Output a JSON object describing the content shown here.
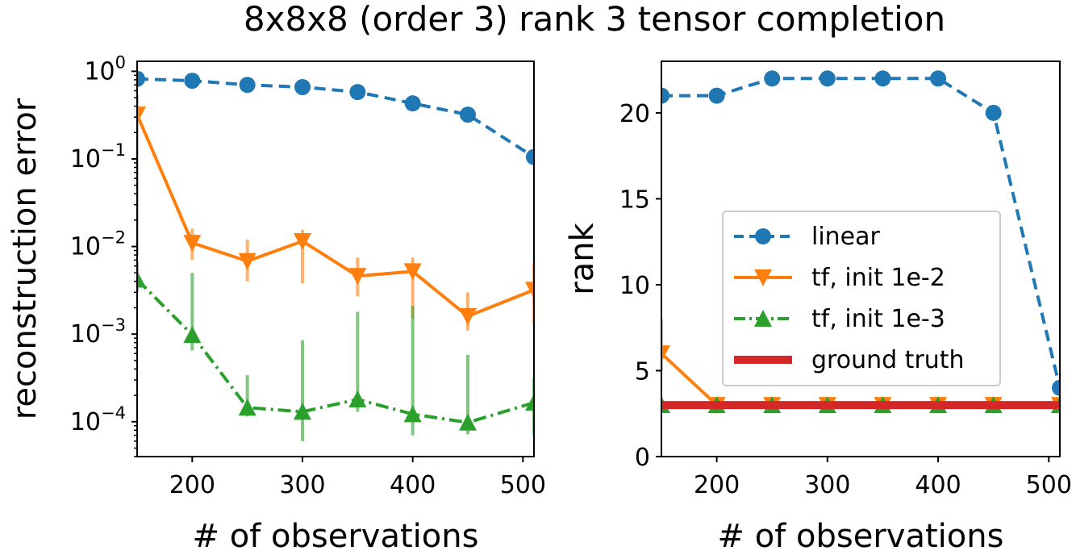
{
  "figure_title": "8x8x8 (order 3) rank 3 tensor completion",
  "colors": {
    "linear": "#1f77b4",
    "tf_1e2": "#ff7f0e",
    "tf_1e3": "#2ca02c",
    "ground_truth": "#d62728"
  },
  "chart_data": [
    {
      "type": "line",
      "yscale": "log",
      "title": "",
      "xlabel": "# of observations",
      "ylabel": "reconstruction error",
      "xlim": [
        150,
        510
      ],
      "ylim": [
        4e-05,
        1.3
      ],
      "xticks": [
        200,
        300,
        400,
        500
      ],
      "xtick_labels": [
        "200",
        "300",
        "400",
        "500"
      ],
      "yticks": [
        1,
        0.1,
        0.01,
        0.001,
        0.0001
      ],
      "ytick_labels": [
        [
          "10",
          "0"
        ],
        [
          "10",
          "−1"
        ],
        [
          "10",
          "−2"
        ],
        [
          "10",
          "−3"
        ],
        [
          "10",
          "−4"
        ]
      ],
      "grid": false,
      "x": [
        150,
        200,
        250,
        300,
        350,
        400,
        450,
        510
      ],
      "series": [
        {
          "name": "linear",
          "color_key": "linear",
          "marker": "circle",
          "dash": "dashed",
          "values": [
            0.82,
            0.78,
            0.7,
            0.66,
            0.58,
            0.43,
            0.32,
            0.105
          ]
        },
        {
          "name": "tf, init 1e-2",
          "color_key": "tf_1e2",
          "marker": "triangle-down",
          "dash": "solid",
          "values": [
            0.32,
            0.011,
            0.0068,
            0.0115,
            0.0046,
            0.0052,
            0.0016,
            0.0032
          ],
          "err_lo": [
            0.008,
            0.007,
            0.004,
            0.0038,
            0.0027,
            0.0015,
            0.0011,
            0.0013
          ],
          "err_hi": [
            0.55,
            0.016,
            0.012,
            0.0155,
            0.0075,
            0.0075,
            0.003,
            0.0065
          ]
        },
        {
          "name": "tf, init 1e-3",
          "color_key": "tf_1e3",
          "marker": "triangle-up",
          "dash": "dashdot",
          "values": [
            0.0042,
            0.00098,
            0.000145,
            0.00013,
            0.00018,
            0.000122,
            9.8e-05,
            0.000165
          ],
          "err_lo": [
            0.003,
            0.00065,
            0.000115,
            6e-05,
            0.00013,
            7e-05,
            7.2e-05,
            7e-05
          ],
          "err_hi": [
            0.0068,
            0.005,
            0.00034,
            0.00085,
            0.0018,
            0.0021,
            0.00058,
            0.00032
          ]
        }
      ]
    },
    {
      "type": "line",
      "yscale": "linear",
      "title": "",
      "xlabel": "# of observations",
      "ylabel": "rank",
      "xlim": [
        150,
        510
      ],
      "ylim": [
        0,
        23
      ],
      "xticks": [
        200,
        300,
        400,
        500
      ],
      "xtick_labels": [
        "200",
        "300",
        "400",
        "500"
      ],
      "yticks": [
        0,
        5,
        10,
        15,
        20
      ],
      "ytick_labels": [
        "0",
        "5",
        "10",
        "15",
        "20"
      ],
      "grid": false,
      "legend_position": "center-right",
      "x": [
        150,
        200,
        250,
        300,
        350,
        400,
        450,
        510
      ],
      "series": [
        {
          "name": "linear",
          "color_key": "linear",
          "marker": "circle",
          "dash": "dashed",
          "values": [
            21,
            21,
            22,
            22,
            22,
            22,
            20,
            4
          ]
        },
        {
          "name": "tf, init 1e-2",
          "color_key": "tf_1e2",
          "marker": "triangle-down",
          "dash": "solid",
          "values": [
            6,
            3,
            3,
            3,
            3,
            3,
            3,
            3
          ],
          "err_lo": [
            5,
            3,
            3,
            3,
            3,
            3,
            3,
            3
          ],
          "err_hi": [
            8,
            3,
            3,
            3,
            3,
            3,
            3,
            3
          ]
        },
        {
          "name": "tf, init 1e-3",
          "color_key": "tf_1e3",
          "marker": "triangle-up",
          "dash": "dashdot",
          "values": [
            3,
            3,
            3,
            3,
            3,
            3,
            3,
            3
          ]
        },
        {
          "name": "ground truth",
          "color_key": "ground_truth",
          "marker": "none",
          "dash": "solid",
          "thick": true,
          "values": [
            3,
            3,
            3,
            3,
            3,
            3,
            3,
            3
          ]
        }
      ],
      "legend": [
        "linear",
        "tf, init 1e-2",
        "tf, init 1e-3",
        "ground truth"
      ]
    }
  ]
}
